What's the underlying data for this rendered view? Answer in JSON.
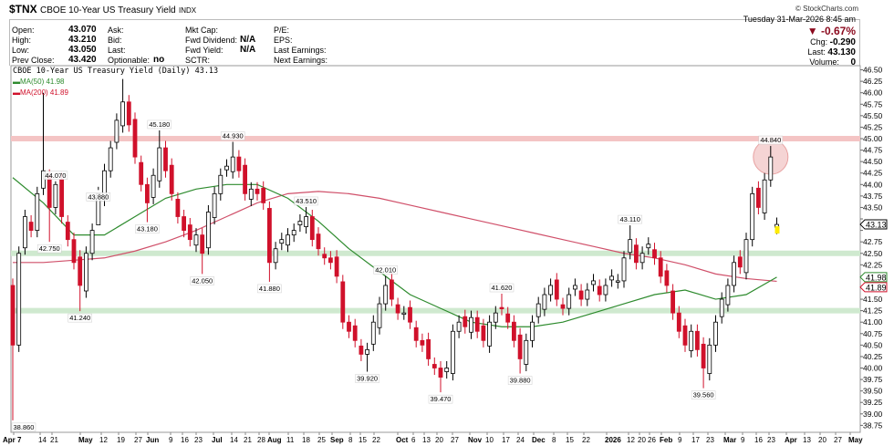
{
  "header": {
    "symbol": "$TNX",
    "name": "CBOE 10-Year US Treasury Yield",
    "exchange": "INDX",
    "watermark": "© StockCharts.com",
    "datetime": "Tuesday  31-Mar-2026  8:45 am",
    "pct_change": "▼ -0.67%",
    "chg_label": "Chg:",
    "chg": "-0.290",
    "last_label": "Last:",
    "last": "43.130",
    "volume_label": "Volume:",
    "volume": "0",
    "fields": [
      {
        "label": "Open:",
        "value": "43.070"
      },
      {
        "label": "High:",
        "value": "43.210"
      },
      {
        "label": "Low:",
        "value": "43.050"
      },
      {
        "label": "Prev Close:",
        "value": "43.420"
      },
      {
        "label": "Ask:",
        "value": ""
      },
      {
        "label": "Bid:",
        "value": ""
      },
      {
        "label": "Last:",
        "value": ""
      },
      {
        "label": "Optionable:",
        "value": "no"
      },
      {
        "label": "Mkt Cap:",
        "value": ""
      },
      {
        "label": "Fwd Dividend:",
        "value": "N/A"
      },
      {
        "label": "Fwd Yield:",
        "value": "N/A"
      },
      {
        "label": "SCTR:",
        "value": ""
      },
      {
        "label": "P/E:",
        "value": ""
      },
      {
        "label": "EPS:",
        "value": ""
      },
      {
        "label": "Last Earnings:",
        "value": ""
      },
      {
        "label": "Next Earnings:",
        "value": ""
      }
    ]
  },
  "colors": {
    "up": "#000000",
    "down": "#d0112b",
    "ma50": "#2e8b2e",
    "ma200": "#d0506a",
    "resistance_band": "#f4c4c4",
    "support_band": "#cfe9cf",
    "circle": "#e8a0a0",
    "pct_change": "#8b0a1e"
  },
  "chart_data": {
    "type": "candlestick",
    "title": "CBOE 10-Year US Treasury Yield (Daily) 43.13",
    "legend": [
      {
        "name": "MA(50) 41.98",
        "color": "#2e8b2e"
      },
      {
        "name": "MA(200) 41.89",
        "color": "#d0112b"
      }
    ],
    "legend_placement": "top-left",
    "start": "Apr 7",
    "end": "Mar 31",
    "ylim": [
      38.75,
      46.5
    ],
    "ytick_step": 0.25,
    "closes": [
      40.5,
      42.5,
      43.3,
      43.0,
      43.8,
      44.3,
      43.5,
      44.0,
      43.3,
      42.8,
      42.3,
      41.8,
      42.5,
      43.0,
      43.8,
      44.3,
      44.8,
      45.4,
      45.8,
      45.3,
      44.6,
      44.0,
      43.6,
      44.2,
      44.8,
      44.3,
      43.8,
      43.3,
      43.0,
      42.8,
      42.9,
      42.5,
      43.4,
      43.8,
      44.2,
      44.4,
      44.6,
      44.3,
      43.8,
      43.9,
      43.8,
      43.6,
      42.3,
      42.6,
      42.8,
      42.9,
      43.0,
      43.2,
      43.3,
      42.8,
      42.6,
      42.4,
      42.3,
      42.0,
      41.0,
      40.8,
      40.6,
      40.3,
      40.4,
      41.0,
      41.4,
      41.8,
      41.5,
      41.2,
      41.2,
      41.0,
      40.6,
      40.5,
      40.2,
      40.0,
      39.8,
      40.0,
      40.8,
      41.0,
      40.9,
      41.1,
      40.8,
      40.6,
      41.0,
      41.2,
      41.3,
      41.0,
      40.6,
      40.2,
      40.6,
      41.0,
      41.4,
      41.6,
      41.8,
      41.5,
      41.3,
      41.6,
      41.8,
      41.5,
      41.7,
      41.9,
      41.6,
      41.8,
      42.0,
      41.9,
      42.4,
      42.8,
      42.3,
      42.5,
      42.7,
      42.4,
      42.0,
      41.8,
      41.2,
      40.8,
      40.5,
      40.8,
      40.4,
      40.0,
      40.5,
      41.0,
      41.5,
      41.8,
      42.3,
      42.2,
      42.8,
      43.8,
      43.5,
      44.1,
      44.6,
      43.13
    ],
    "price_labels": [
      {
        "i": 0,
        "v": 38.86,
        "text": "38.860",
        "pos": "below"
      },
      {
        "i": 5,
        "v": 46.0,
        "text": "",
        "pos": "above"
      },
      {
        "i": 7,
        "v": 44.07,
        "text": "44.070",
        "pos": "above"
      },
      {
        "i": 6,
        "v": 42.75,
        "text": "42.750",
        "pos": "below"
      },
      {
        "i": 14,
        "v": 43.88,
        "text": "43.880",
        "pos": "below"
      },
      {
        "i": 11,
        "v": 41.24,
        "text": "41.240",
        "pos": "below"
      },
      {
        "i": 18,
        "v": 46.3,
        "text": "",
        "pos": "above"
      },
      {
        "i": 24,
        "v": 45.18,
        "text": "45.180",
        "pos": "above"
      },
      {
        "i": 22,
        "v": 43.18,
        "text": "43.180",
        "pos": "below"
      },
      {
        "i": 31,
        "v": 42.05,
        "text": "42.050",
        "pos": "below"
      },
      {
        "i": 36,
        "v": 44.93,
        "text": "44.930",
        "pos": "above"
      },
      {
        "i": 42,
        "v": 41.88,
        "text": "41.880",
        "pos": "below"
      },
      {
        "i": 48,
        "v": 43.51,
        "text": "43.510",
        "pos": "above"
      },
      {
        "i": 61,
        "v": 42.01,
        "text": "42.010",
        "pos": "above"
      },
      {
        "i": 58,
        "v": 39.92,
        "text": "39.920",
        "pos": "below"
      },
      {
        "i": 70,
        "v": 39.47,
        "text": "39.470",
        "pos": "below"
      },
      {
        "i": 80,
        "v": 41.62,
        "text": "41.620",
        "pos": "above"
      },
      {
        "i": 83,
        "v": 39.88,
        "text": "39.880",
        "pos": "below"
      },
      {
        "i": 101,
        "v": 43.11,
        "text": "43.110",
        "pos": "above"
      },
      {
        "i": 113,
        "v": 39.56,
        "text": "39.560",
        "pos": "below"
      },
      {
        "i": 124,
        "v": 44.84,
        "text": "44.840",
        "pos": "above"
      }
    ],
    "ma50": [
      44.15,
      43.6,
      42.9,
      42.9,
      43.3,
      43.7,
      43.9,
      44.0,
      44.0,
      43.7,
      43.2,
      42.6,
      42.1,
      41.6,
      41.3,
      41.0,
      40.9,
      40.9,
      41.0,
      41.2,
      41.4,
      41.6,
      41.7,
      41.5,
      41.6,
      41.98
    ],
    "ma200": [
      42.3,
      42.3,
      42.35,
      42.4,
      42.55,
      42.75,
      43.0,
      43.3,
      43.6,
      43.8,
      43.85,
      43.8,
      43.7,
      43.55,
      43.4,
      43.25,
      43.1,
      42.95,
      42.8,
      42.65,
      42.5,
      42.4,
      42.25,
      42.05,
      41.95,
      41.89
    ],
    "horizontal_bands": [
      {
        "value": 45.0,
        "type": "resistance"
      },
      {
        "value": 42.5,
        "type": "support"
      },
      {
        "value": 41.25,
        "type": "support"
      }
    ],
    "highlight_circle": {
      "value": 44.6,
      "candle": "Mar 26"
    },
    "right_tags": [
      {
        "text": "43.13",
        "color": "#000000",
        "value": 43.13
      },
      {
        "text": "41.98",
        "color": "#2e8b2e",
        "value": 41.98
      },
      {
        "text": "41.89",
        "color": "#d0112b",
        "value": 41.89
      }
    ],
    "xtick_labels": [
      "Apr 7",
      "14",
      "21",
      "May",
      "12",
      "19",
      "27",
      "Jun",
      "9",
      "16",
      "23",
      "Jul",
      "14",
      "21",
      "28",
      "Aug",
      "11",
      "18",
      "25",
      "Sep",
      "8",
      "15",
      "22",
      "Oct",
      "6",
      "13",
      "20",
      "27",
      "Nov",
      "10",
      "17",
      "24",
      "Dec",
      "8",
      "15",
      "22",
      "2026",
      "12",
      "20",
      "26",
      "Feb",
      "9",
      "17",
      "23",
      "Mar",
      "9",
      "16",
      "23",
      "Apr",
      "13",
      "20",
      "27",
      "May"
    ],
    "xtick_bold": [
      "Apr 7",
      "May",
      "Jun",
      "Jul",
      "Aug",
      "Sep",
      "Oct",
      "Nov",
      "Dec",
      "2026",
      "Feb",
      "Mar",
      "Apr",
      "May"
    ]
  }
}
